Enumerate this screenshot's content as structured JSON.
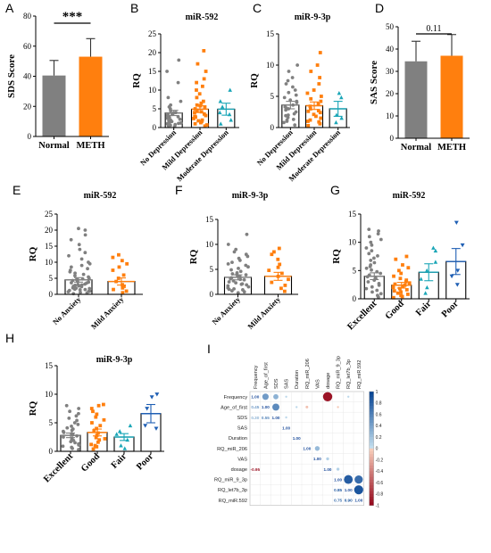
{
  "colors": {
    "gray": "#808080",
    "orange": "#ff7f0e",
    "teal": "#1aa6b7",
    "blue": "#1f5fb4",
    "barFill": "#ffffff"
  },
  "chart_data": [
    {
      "id": "A",
      "letter": "A",
      "type": "bar",
      "categories": [
        "Normal",
        "METH"
      ],
      "values": [
        40.5,
        53
      ],
      "errors": [
        10,
        12
      ],
      "fills": [
        "gray",
        "orange"
      ],
      "ylabel": "SDS Score",
      "ylim": [
        0,
        80
      ],
      "ticks": [
        0,
        20,
        40,
        60,
        80
      ],
      "annotation": "***",
      "labelStyle": "flat"
    },
    {
      "id": "B",
      "letter": "B",
      "type": "bar",
      "title": "miR-592",
      "categories": [
        "No Depression",
        "Mild Depression",
        "Moderate Depression"
      ],
      "values": [
        3.9,
        4.9,
        4.9
      ],
      "errors": [
        0.7,
        0.9,
        1.6
      ],
      "ylabel": "RQ",
      "ylim": [
        0,
        25
      ],
      "ticks": [
        0,
        5,
        10,
        15,
        20,
        25
      ],
      "labelStyle": "rotated",
      "series": [
        {
          "name": "",
          "color": "gray",
          "marker": "circle",
          "points": [
            0.3,
            0.5,
            0.8,
            1.0,
            1.2,
            1.4,
            1.6,
            1.8,
            2.0,
            2.2,
            2.5,
            2.7,
            3.0,
            3.2,
            3.5,
            3.8,
            4.0,
            4.5,
            5.0,
            5.5,
            6.0,
            7.0,
            8.0,
            12.0,
            15.0,
            18.0,
            0.6,
            1.1,
            2.9,
            3.6
          ]
        },
        {
          "name": "",
          "color": "orange",
          "marker": "square",
          "points": [
            0.4,
            0.7,
            1.0,
            1.3,
            1.6,
            2.0,
            2.4,
            2.8,
            3.2,
            3.6,
            4.0,
            4.5,
            5.0,
            5.5,
            6.0,
            6.5,
            7.0,
            8.0,
            9.0,
            10.0,
            11.0,
            12.0,
            13.0,
            15.0,
            17.0,
            20.5,
            1.8,
            3.0,
            4.2,
            5.8
          ]
        },
        {
          "name": "",
          "color": "teal",
          "marker": "triangle",
          "points": [
            1.0,
            2.0,
            3.5,
            4.0,
            5.5,
            7.0,
            10.0
          ]
        }
      ]
    },
    {
      "id": "C",
      "letter": "C",
      "type": "bar",
      "title": "miR-9-3p",
      "categories": [
        "No Depression",
        "Mild Depression",
        "Moderate Depression"
      ],
      "values": [
        3.6,
        3.5,
        3.0
      ],
      "errors": [
        0.6,
        0.6,
        1.2
      ],
      "ylabel": "RQ",
      "ylim": [
        0,
        15
      ],
      "ticks": [
        0,
        5,
        10,
        15
      ],
      "labelStyle": "rotated",
      "series": [
        {
          "name": "",
          "color": "gray",
          "marker": "circle",
          "points": [
            0.4,
            0.8,
            1.0,
            1.3,
            1.6,
            1.9,
            2.2,
            2.5,
            2.8,
            3.0,
            3.3,
            3.6,
            4.0,
            4.4,
            4.8,
            5.2,
            5.6,
            6.0,
            6.5,
            7.0,
            7.5,
            8.0,
            9.0,
            10.0,
            1.2,
            2.0,
            3.1,
            4.2
          ]
        },
        {
          "name": "",
          "color": "orange",
          "marker": "square",
          "points": [
            0.3,
            0.6,
            0.9,
            1.2,
            1.5,
            1.8,
            2.1,
            2.4,
            2.7,
            3.0,
            3.4,
            3.8,
            4.2,
            4.6,
            5.0,
            5.5,
            6.0,
            7.0,
            8.0,
            9.0,
            10.0,
            12.0,
            1.0,
            2.6
          ]
        },
        {
          "name": "",
          "color": "teal",
          "marker": "triangle",
          "points": [
            0.8,
            1.5,
            2.0,
            4.8,
            5.5
          ]
        }
      ]
    },
    {
      "id": "D",
      "letter": "D",
      "type": "bar",
      "categories": [
        "Normal",
        "METH"
      ],
      "values": [
        34.5,
        37
      ],
      "errors": [
        9,
        9.5
      ],
      "fills": [
        "gray",
        "orange"
      ],
      "ylabel": "SAS Score",
      "ylim": [
        0,
        50
      ],
      "ticks": [
        0,
        10,
        20,
        30,
        40,
        50
      ],
      "annotation": "0.11",
      "labelStyle": "flat"
    },
    {
      "id": "E",
      "letter": "E",
      "type": "bar",
      "title": "miR-592",
      "categories": [
        "No Anxiety",
        "Mild Anxiety"
      ],
      "values": [
        4.5,
        4.0
      ],
      "errors": [
        0.7,
        1.1
      ],
      "ylabel": "RQ",
      "ylim": [
        0,
        25
      ],
      "ticks": [
        0,
        5,
        10,
        15,
        20,
        25
      ],
      "labelStyle": "rotated",
      "series": [
        {
          "name": "",
          "color": "gray",
          "marker": "circle",
          "points": [
            0.2,
            0.4,
            0.6,
            0.8,
            1.0,
            1.2,
            1.4,
            1.6,
            1.8,
            2.0,
            2.2,
            2.4,
            2.6,
            2.8,
            3.0,
            3.2,
            3.5,
            3.8,
            4.0,
            4.3,
            4.6,
            5.0,
            5.4,
            5.8,
            6.2,
            6.6,
            7.0,
            7.5,
            8.0,
            8.5,
            9.0,
            9.5,
            10.0,
            11.0,
            12.0,
            13.0,
            14.0,
            15.5,
            17.0,
            18.5,
            20.0,
            20.5,
            1.5,
            2.5,
            3.6,
            0.9,
            1.9,
            2.9,
            4.8
          ]
        },
        {
          "name": "",
          "color": "orange",
          "marker": "square",
          "points": [
            0.5,
            1.0,
            1.5,
            2.0,
            2.5,
            3.0,
            4.0,
            5.0,
            6.0,
            7.5,
            8.5,
            9.5,
            10.5,
            11.5,
            12.3
          ]
        }
      ]
    },
    {
      "id": "F",
      "letter": "F",
      "type": "bar",
      "title": "miR-9-3p",
      "categories": [
        "No Anxiety",
        "Mild Anxiety"
      ],
      "values": [
        3.4,
        3.6
      ],
      "errors": [
        0.5,
        0.8
      ],
      "ylabel": "RQ",
      "ylim": [
        0,
        15
      ],
      "ticks": [
        0,
        5,
        10,
        15
      ],
      "labelStyle": "rotated",
      "series": [
        {
          "name": "",
          "color": "gray",
          "marker": "circle",
          "points": [
            0.3,
            0.5,
            0.7,
            0.9,
            1.1,
            1.3,
            1.5,
            1.7,
            1.9,
            2.1,
            2.3,
            2.5,
            2.7,
            2.9,
            3.1,
            3.3,
            3.5,
            3.7,
            3.9,
            4.1,
            4.3,
            4.6,
            4.9,
            5.2,
            5.5,
            5.8,
            6.1,
            6.4,
            6.8,
            7.2,
            7.6,
            8.0,
            8.5,
            9.0,
            10.0,
            12.0,
            1.0,
            2.0,
            3.0,
            4.0
          ]
        },
        {
          "name": "",
          "color": "orange",
          "marker": "square",
          "points": [
            0.6,
            1.2,
            1.8,
            2.4,
            3.0,
            3.6,
            4.2,
            4.8,
            5.4,
            6.0,
            7.0,
            8.0,
            8.5,
            9.2
          ]
        }
      ]
    },
    {
      "id": "G",
      "letter": "G",
      "type": "bar",
      "title": "miR-592",
      "categories": [
        "Excellent",
        "Good",
        "Fair",
        "Poor"
      ],
      "values": [
        4.0,
        2.4,
        4.7,
        6.6
      ],
      "errors": [
        0.6,
        0.5,
        1.5,
        2.3
      ],
      "ylabel": "RQ",
      "ylim": [
        0,
        15
      ],
      "ticks": [
        0,
        5,
        10,
        15
      ],
      "labelStyle": "rotatedBig",
      "series": [
        {
          "name": "",
          "color": "gray",
          "marker": "circle",
          "points": [
            0.3,
            0.6,
            0.9,
            1.2,
            1.5,
            1.8,
            2.1,
            2.4,
            2.7,
            3.0,
            3.3,
            3.6,
            3.9,
            4.2,
            4.5,
            4.8,
            5.1,
            5.4,
            5.7,
            6.0,
            6.4,
            6.8,
            7.2,
            7.6,
            8.0,
            8.5,
            9.0,
            9.5,
            10.0,
            10.5,
            11.0,
            11.5,
            12.0,
            12.3
          ]
        },
        {
          "name": "",
          "color": "orange",
          "marker": "square",
          "points": [
            0.2,
            0.4,
            0.6,
            0.8,
            1.0,
            1.2,
            1.4,
            1.6,
            1.8,
            2.0,
            2.2,
            2.4,
            2.6,
            2.8,
            3.0,
            3.3,
            3.6,
            4.0,
            4.5,
            5.0,
            5.5,
            6.0,
            7.0,
            7.5
          ]
        },
        {
          "name": "",
          "color": "teal",
          "marker": "triangle",
          "points": [
            1.0,
            2.0,
            3.5,
            5.0,
            6.5,
            8.5,
            9.0
          ]
        },
        {
          "name": "",
          "color": "blue",
          "marker": "triangle-down",
          "points": [
            2.5,
            4.0,
            5.0,
            9.5,
            13.5
          ]
        }
      ]
    },
    {
      "id": "H",
      "letter": "H",
      "type": "bar",
      "title": "miR-9-3p",
      "categories": [
        "Excellent",
        "Good",
        "Fair",
        "Poor"
      ],
      "values": [
        2.8,
        3.3,
        2.5,
        6.6
      ],
      "errors": [
        0.4,
        0.6,
        0.6,
        1.6
      ],
      "ylabel": "RQ",
      "ylim": [
        0,
        15
      ],
      "ticks": [
        0,
        5,
        10,
        15
      ],
      "labelStyle": "rotatedBig",
      "series": [
        {
          "name": "",
          "color": "gray",
          "marker": "circle",
          "points": [
            0.3,
            0.5,
            0.7,
            0.9,
            1.1,
            1.3,
            1.5,
            1.7,
            1.9,
            2.1,
            2.3,
            2.5,
            2.7,
            2.9,
            3.1,
            3.3,
            3.5,
            3.7,
            3.9,
            4.1,
            4.4,
            4.7,
            5.0,
            5.4,
            5.8,
            6.2,
            6.6,
            7.0,
            7.5,
            8.0
          ]
        },
        {
          "name": "",
          "color": "orange",
          "marker": "square",
          "points": [
            0.4,
            0.8,
            1.2,
            1.6,
            2.0,
            2.4,
            2.8,
            3.2,
            3.6,
            4.0,
            4.5,
            5.0,
            5.5,
            6.0,
            6.5,
            7.0,
            7.5,
            8.0,
            8.2,
            1.0,
            2.2
          ]
        },
        {
          "name": "",
          "color": "teal",
          "marker": "triangle",
          "points": [
            0.5,
            1.0,
            2.0,
            3.0,
            3.5,
            4.5
          ]
        },
        {
          "name": "",
          "color": "blue",
          "marker": "triangle-down",
          "points": [
            4.0,
            4.5,
            7.5,
            9.5,
            10.0
          ]
        }
      ]
    }
  ],
  "correlation": {
    "letter": "I",
    "type": "heatmap",
    "variables": [
      "Frequency",
      "Age_of_first",
      "SDS",
      "SAS",
      "Duration",
      "RQ_miR_206",
      "VAS",
      "dosage",
      "RQ_miR_9_3p",
      "RQ_let7b_3p",
      "RQ_miR.592"
    ],
    "colorbar_ticks": [
      "1",
      "0.8",
      "0.6",
      "0.4",
      "0.2",
      "0",
      "-0.2",
      "-0.4",
      "-0.6",
      "-0.8",
      "-1"
    ],
    "diag_label": "1.00",
    "upper": [
      [
        0,
        1,
        0.45
      ],
      [
        0,
        2,
        0.3
      ],
      [
        0,
        3,
        0.05
      ],
      [
        0,
        7,
        -0.95
      ],
      [
        0,
        9,
        0.05
      ],
      [
        1,
        2,
        0.55
      ],
      [
        1,
        4,
        0.05
      ],
      [
        1,
        5,
        -0.08
      ],
      [
        1,
        8,
        -0.05
      ],
      [
        2,
        3,
        0.05
      ],
      [
        5,
        6,
        0.25
      ],
      [
        6,
        7,
        0.1
      ],
      [
        7,
        8,
        0.1
      ],
      [
        8,
        9,
        0.85
      ],
      [
        8,
        10,
        0.75
      ],
      [
        9,
        10,
        0.9
      ]
    ],
    "lower_labels": [
      [
        1,
        0,
        "0.45"
      ],
      [
        2,
        0,
        "0.30"
      ],
      [
        2,
        1,
        "0.55"
      ],
      [
        7,
        0,
        "-0.95"
      ],
      [
        10,
        8,
        "0.75"
      ],
      [
        10,
        9,
        "0.90"
      ],
      [
        9,
        8,
        "0.85"
      ]
    ]
  }
}
